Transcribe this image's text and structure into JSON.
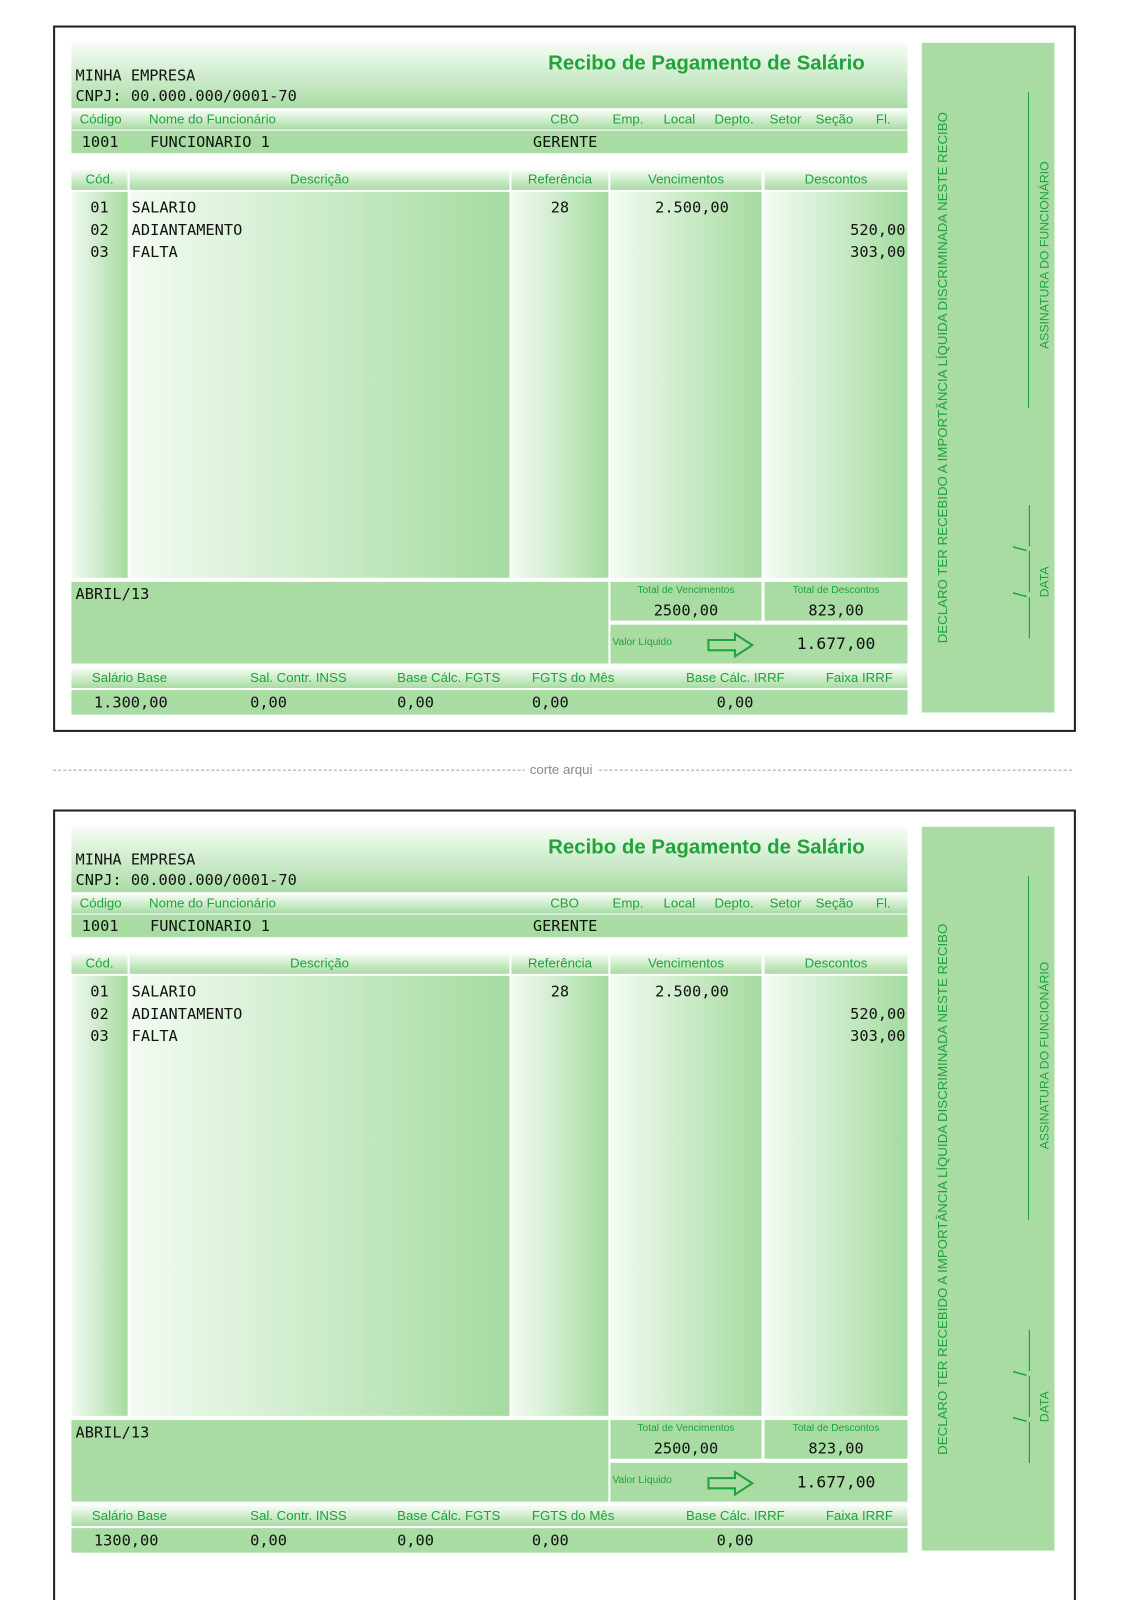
{
  "receipts": [
    {
      "title": "Recibo de Pagamento de Salário",
      "company": "MINHA EMPRESA",
      "cnpj": "CNPJ: 00.000.000/0001-70",
      "header_labels": [
        "Código",
        "Nome do Funcionário",
        "CBO",
        "Emp.",
        "Local",
        "Depto.",
        "Setor",
        "Seção",
        "Fl."
      ],
      "employee": {
        "code": "1001",
        "name": "FUNCIONARIO 1",
        "cbo": "GERENTE"
      },
      "columns": [
        "Cód.",
        "Descrição",
        "Referência",
        "Vencimentos",
        "Descontos"
      ],
      "items": [
        {
          "code": "01",
          "description": "SALARIO",
          "reference": "28",
          "earnings": "2.500,00"
        },
        {
          "code": "02",
          "description": "ADIANTAMENTO",
          "deductions": "520,00"
        },
        {
          "code": "03",
          "description": "FALTA",
          "deductions": "303,00"
        }
      ],
      "period": "ABRIL/13",
      "total_earnings_label": "Total de Vencimentos",
      "total_earnings": "2500,00",
      "total_deductions_label": "Total de Descontos",
      "total_deductions": "823,00",
      "net_label": "Valor Líquido",
      "net": "1.677,00",
      "footer": [
        {
          "label": "Salário Base",
          "value": "1.300,00"
        },
        {
          "label": "Sal. Contr. INSS",
          "value": "0,00"
        },
        {
          "label": "Base Cálc. FGTS",
          "value": "0,00"
        },
        {
          "label": "FGTS do Mês",
          "value": "0,00"
        },
        {
          "label": "Base Cálc. IRRF",
          "value": "0,00"
        },
        {
          "label": "Faixa IRRF"
        }
      ],
      "declaration": "DECLARO TER RECEBIDO A IMPORTÂNCIA LÍQUIDA DISCRIMINADA NESTE RECIBO",
      "signature": "ASSINATURA DO FUNCIONÁRIO",
      "date_label": "DATA",
      "date_line": "____/____/____"
    },
    {
      "title": "Recibo de Pagamento de Salário",
      "company": "MINHA EMPRESA",
      "cnpj": "CNPJ: 00.000.000/0001-70",
      "header_labels": [
        "Código",
        "Nome do Funcionário",
        "CBO",
        "Emp.",
        "Local",
        "Depto.",
        "Setor",
        "Seção",
        "Fl."
      ],
      "employee": {
        "code": "1001",
        "name": "FUNCIONARIO 1",
        "cbo": "GERENTE"
      },
      "columns": [
        "Cód.",
        "Descrição",
        "Referência",
        "Vencimentos",
        "Descontos"
      ],
      "items": [
        {
          "code": "01",
          "description": "SALARIO",
          "reference": "28",
          "earnings": "2.500,00"
        },
        {
          "code": "02",
          "description": "ADIANTAMENTO",
          "deductions": "520,00"
        },
        {
          "code": "03",
          "description": "FALTA",
          "deductions": "303,00"
        }
      ],
      "period": "ABRIL/13",
      "total_earnings_label": "Total de Vencimentos",
      "total_earnings": "2500,00",
      "total_deductions_label": "Total de Descontos",
      "total_deductions": "823,00",
      "net_label": "Valor Líquido",
      "net": "1.677,00",
      "footer": [
        {
          "label": "Salário Base",
          "value": "1300,00"
        },
        {
          "label": "Sal. Contr. INSS",
          "value": "0,00"
        },
        {
          "label": "Base Cálc. FGTS",
          "value": "0,00"
        },
        {
          "label": "FGTS do Mês",
          "value": "0,00"
        },
        {
          "label": "Base Cálc. IRRF",
          "value": "0,00"
        },
        {
          "label": "Faixa IRRF"
        }
      ],
      "declaration": "DECLARO TER RECEBIDO A IMPORTÂNCIA LÍQUIDA DISCRIMINADA NESTE RECIBO",
      "signature": "ASSINATURA DO FUNCIONÁRIO",
      "date_label": "DATA",
      "date_line": "____/____/____"
    }
  ],
  "cut_label": "corte arqui"
}
